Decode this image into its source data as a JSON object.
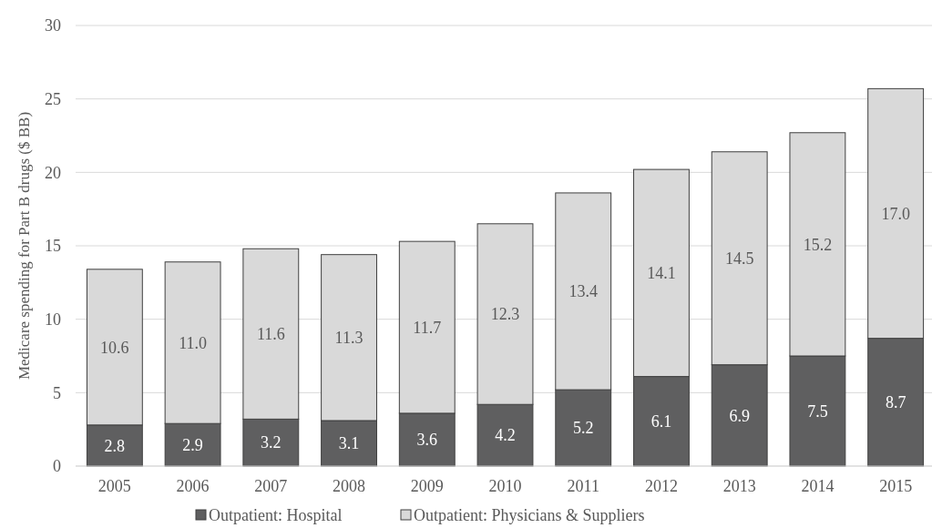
{
  "chart_data": {
    "type": "bar",
    "stacked": true,
    "ylabel": "Medicare spending for Part B drugs ($ BB)",
    "categories": [
      "2005",
      "2006",
      "2007",
      "2008",
      "2009",
      "2010",
      "2011",
      "2012",
      "2013",
      "2014",
      "2015"
    ],
    "series": [
      {
        "name": "Outpatient: Hospital",
        "color": "#5f5f60",
        "values": [
          2.8,
          2.9,
          3.2,
          3.1,
          3.6,
          4.2,
          5.2,
          6.1,
          6.9,
          7.5,
          8.7
        ],
        "value_labels": [
          "2.8",
          "2.9",
          "3.2",
          "3.1",
          "3.6",
          "4.2",
          "5.2",
          "6.1",
          "6.9",
          "7.5",
          "8.7"
        ]
      },
      {
        "name": "Outpatient: Physicians & Suppliers",
        "color": "#d9d9d9",
        "values": [
          10.6,
          11.0,
          11.6,
          11.3,
          11.7,
          12.3,
          13.4,
          14.1,
          14.5,
          15.2,
          17.0
        ],
        "value_labels": [
          "10.6",
          "11.0",
          "11.6",
          "11.3",
          "11.7",
          "12.3",
          "13.4",
          "14.1",
          "14.5",
          "15.2",
          "17.0"
        ]
      }
    ],
    "ylim": [
      0,
      30
    ],
    "yticks": [
      0,
      5,
      10,
      15,
      20,
      25,
      30
    ],
    "grid": "y",
    "legend": "bottom"
  }
}
